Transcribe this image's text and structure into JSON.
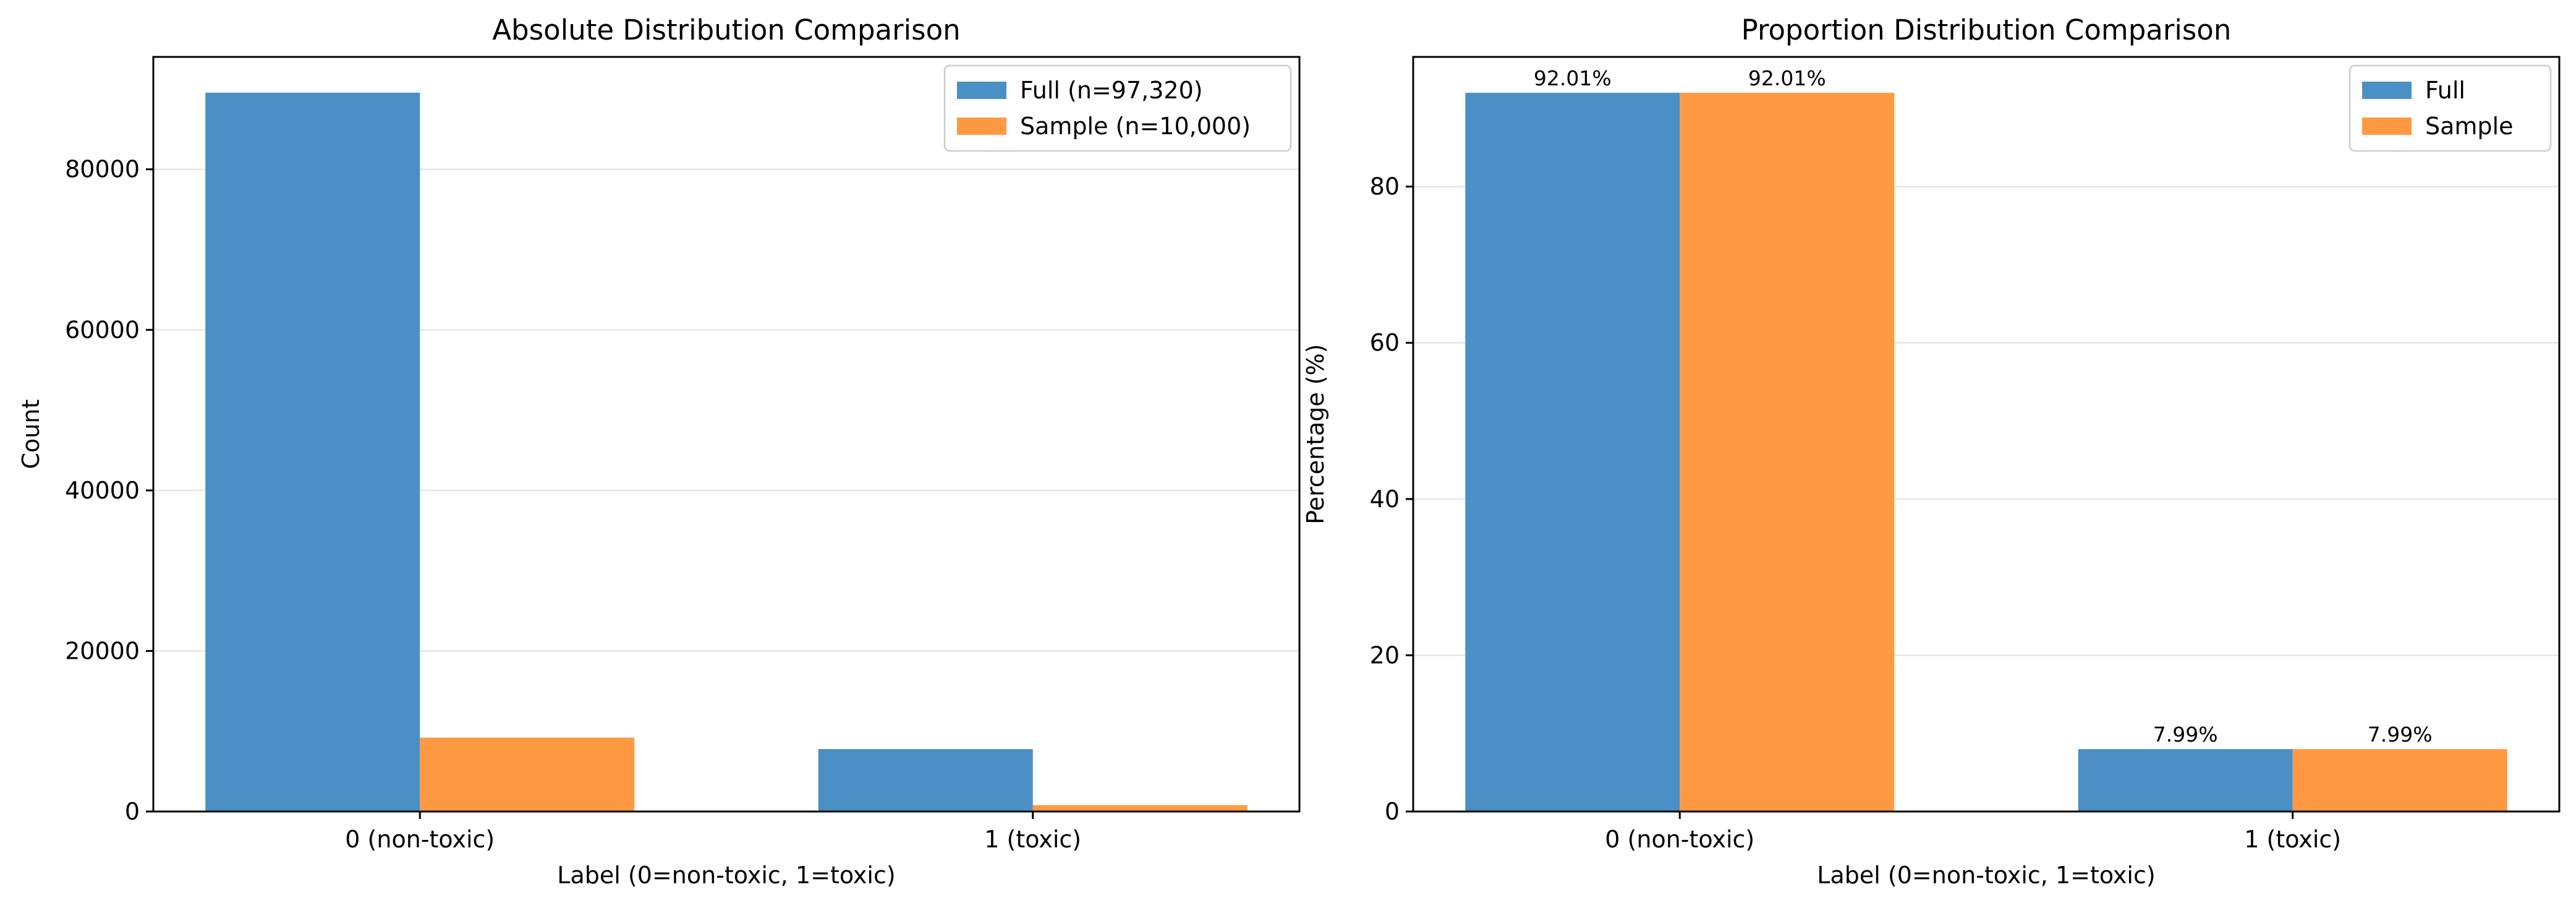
{
  "chart_data": [
    {
      "type": "bar",
      "title": "Absolute Distribution Comparison",
      "xlabel": "Label (0=non-toxic, 1=toxic)",
      "ylabel": "Count",
      "categories": [
        "0 (non-toxic)",
        "1 (toxic)"
      ],
      "series": [
        {
          "name": "Full (n=97,320)",
          "values": [
            89544,
            7776
          ],
          "color": "#4a90c4"
        },
        {
          "name": "Sample (n=10,000)",
          "values": [
            9201,
            799
          ],
          "color": "#ff9a42"
        }
      ],
      "ylim": [
        0,
        94000
      ],
      "yticks": [
        0,
        20000,
        40000,
        60000,
        80000
      ],
      "ytick_labels": [
        "0",
        "20000",
        "40000",
        "60000",
        "80000"
      ],
      "grid": "y",
      "legend": "top-right",
      "data_labels": []
    },
    {
      "type": "bar",
      "title": "Proportion Distribution Comparison",
      "xlabel": "Label (0=non-toxic, 1=toxic)",
      "ylabel": "Percentage (%)",
      "categories": [
        "0 (non-toxic)",
        "1 (toxic)"
      ],
      "series": [
        {
          "name": "Full",
          "values": [
            92.01,
            7.99
          ],
          "color": "#4a90c4"
        },
        {
          "name": "Sample",
          "values": [
            92.01,
            7.99
          ],
          "color": "#ff9a42"
        }
      ],
      "ylim": [
        0,
        96.6
      ],
      "yticks": [
        0,
        20,
        40,
        60,
        80
      ],
      "ytick_labels": [
        "0",
        "20",
        "40",
        "60",
        "80"
      ],
      "grid": "y",
      "legend": "top-right",
      "data_labels": [
        [
          "92.01%",
          "7.99%"
        ],
        [
          "92.01%",
          "7.99%"
        ]
      ]
    }
  ],
  "colors": {
    "series_1": "#4a90c4",
    "series_2": "#ff9a42",
    "grid": "#e6e6e6",
    "axes": "#000000"
  }
}
